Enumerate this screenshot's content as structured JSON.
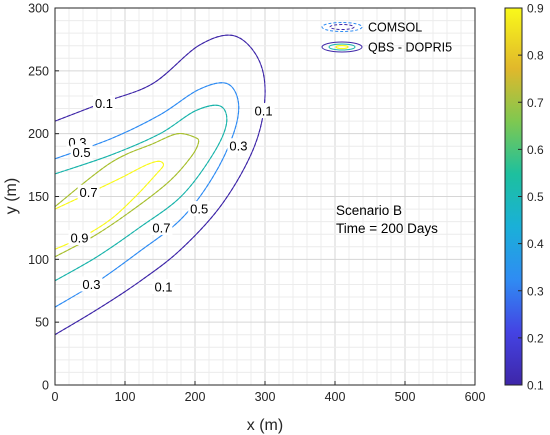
{
  "chart_data": {
    "type": "contour",
    "xlabel": "x (m)",
    "ylabel": "y (m)",
    "xlim": [
      0,
      600
    ],
    "ylim": [
      0,
      300
    ],
    "xticks": [
      0,
      100,
      200,
      300,
      400,
      500,
      600
    ],
    "yticks": [
      0,
      50,
      100,
      150,
      200,
      250,
      300
    ],
    "grid": true,
    "minor_grid": true,
    "legend": {
      "placement": "top-right",
      "entries": [
        {
          "label": "COMSOL",
          "style": "dashed"
        },
        {
          "label": "QBS - DOPRI5",
          "style": "solid"
        }
      ]
    },
    "annotation": {
      "lines": [
        "Scenario B",
        "Time = 200 Days"
      ]
    },
    "colorbar": {
      "range": [
        0.1,
        0.9
      ],
      "ticks": [
        0.1,
        0.2,
        0.3,
        0.4,
        0.5,
        0.6,
        0.7,
        0.8,
        0.9
      ],
      "colormap": "parula"
    },
    "contours": [
      {
        "level": 0.1,
        "color": "#3e26a8",
        "points": [
          [
            0,
            40
          ],
          [
            60,
            60
          ],
          [
            120,
            82
          ],
          [
            180,
            108
          ],
          [
            240,
            145
          ],
          [
            285,
            190
          ],
          [
            300,
            230
          ],
          [
            290,
            260
          ],
          [
            255,
            278
          ],
          [
            205,
            270
          ],
          [
            140,
            240
          ],
          [
            70,
            225
          ],
          [
            0,
            210
          ]
        ],
        "labels": [
          {
            "text": "0.1",
            "at": [
              155,
              78
            ]
          },
          {
            "text": "0.1",
            "at": [
              70,
              224
            ]
          },
          {
            "text": "0.1",
            "at": [
              298,
              218
            ]
          }
        ]
      },
      {
        "level": 0.3,
        "color": "#2f8cf3",
        "points": [
          [
            0,
            62
          ],
          [
            60,
            82
          ],
          [
            120,
            106
          ],
          [
            180,
            132
          ],
          [
            225,
            165
          ],
          [
            255,
            200
          ],
          [
            262,
            225
          ],
          [
            245,
            240
          ],
          [
            205,
            235
          ],
          [
            150,
            215
          ],
          [
            80,
            196
          ],
          [
            0,
            180
          ]
        ],
        "labels": [
          {
            "text": "0.3",
            "at": [
              52,
              80
            ]
          },
          {
            "text": "0.3",
            "at": [
              32,
              193
            ]
          },
          {
            "text": "0.3",
            "at": [
              262,
              190
            ]
          }
        ]
      },
      {
        "level": 0.5,
        "color": "#1ab4ab",
        "points": [
          [
            0,
            83
          ],
          [
            60,
            102
          ],
          [
            120,
            125
          ],
          [
            180,
            150
          ],
          [
            225,
            183
          ],
          [
            245,
            208
          ],
          [
            236,
            222
          ],
          [
            200,
            218
          ],
          [
            150,
            200
          ],
          [
            80,
            183
          ],
          [
            0,
            168
          ]
        ],
        "labels": [
          {
            "text": "0.5",
            "at": [
              206,
              140
            ]
          },
          {
            "text": "0.5",
            "at": [
              38,
              185
            ]
          }
        ]
      },
      {
        "level": 0.7,
        "color": "#a7bf2e",
        "points": [
          [
            0,
            102
          ],
          [
            60,
            120
          ],
          [
            120,
            143
          ],
          [
            165,
            163
          ],
          [
            195,
            182
          ],
          [
            205,
            193
          ],
          [
            200,
            197
          ],
          [
            175,
            200
          ],
          [
            140,
            192
          ],
          [
            80,
            177
          ],
          [
            0,
            142
          ]
        ],
        "labels": [
          {
            "text": "0.7",
            "at": [
              152,
              125
            ]
          },
          {
            "text": "0.7",
            "at": [
              48,
              153
            ]
          }
        ]
      },
      {
        "level": 0.9,
        "color": "#f9f91a",
        "points": [
          [
            0,
            108
          ],
          [
            40,
            118
          ],
          [
            80,
            132
          ],
          [
            115,
            150
          ],
          [
            145,
            168
          ],
          [
            155,
            175
          ],
          [
            148,
            178
          ],
          [
            130,
            175
          ],
          [
            95,
            165
          ],
          [
            50,
            153
          ],
          [
            0,
            140
          ]
        ],
        "labels": [
          {
            "text": "0.9",
            "at": [
              35,
              117
            ]
          }
        ]
      }
    ]
  }
}
